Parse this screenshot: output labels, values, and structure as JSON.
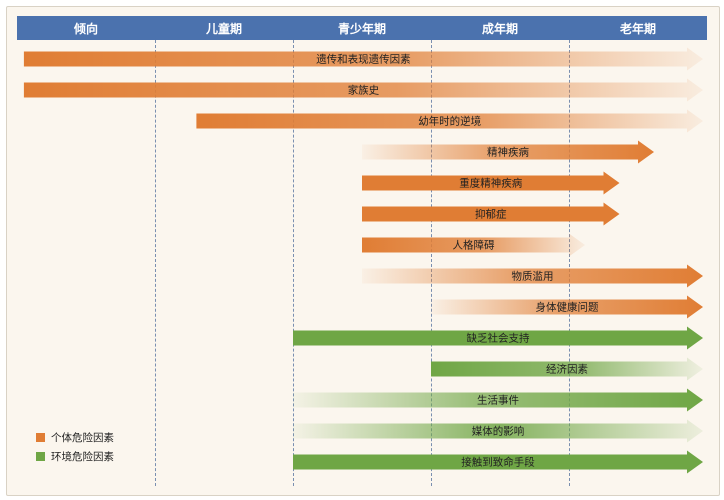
{
  "stages": [
    "倾向",
    "儿童期",
    "青少年期",
    "成年期",
    "老年期"
  ],
  "colors": {
    "orange": "#e07d34",
    "green": "#6fa645",
    "header": "#4b72ae"
  },
  "rows": [
    {
      "label": "遗传和表现遗传因素",
      "group": "individual",
      "from": 0.05,
      "to": 5.0,
      "fade": "end"
    },
    {
      "label": "家族史",
      "group": "individual",
      "from": 0.05,
      "to": 5.0,
      "fade": "end"
    },
    {
      "label": "幼年时的逆境",
      "group": "individual",
      "from": 1.3,
      "to": 5.0,
      "fade": "end"
    },
    {
      "label": "精神疾病",
      "group": "individual",
      "from": 2.5,
      "to": 4.5,
      "fade": "start"
    },
    {
      "label": "重度精神疾病",
      "group": "individual",
      "from": 2.5,
      "to": 4.25,
      "fade": "none"
    },
    {
      "label": "抑郁症",
      "group": "individual",
      "from": 2.5,
      "to": 4.25,
      "fade": "none"
    },
    {
      "label": "人格障碍",
      "group": "individual",
      "from": 2.5,
      "to": 4.0,
      "fade": "end"
    },
    {
      "label": "物质滥用",
      "group": "individual",
      "from": 2.5,
      "to": 5.0,
      "fade": "start"
    },
    {
      "label": "身体健康问题",
      "group": "individual",
      "from": 3.0,
      "to": 5.0,
      "fade": "start"
    },
    {
      "label": "缺乏社会支持",
      "group": "environment",
      "from": 2.0,
      "to": 5.0,
      "fade": "none"
    },
    {
      "label": "经济因素",
      "group": "environment",
      "from": 3.0,
      "to": 5.0,
      "fade": "end"
    },
    {
      "label": "生活事件",
      "group": "environment",
      "from": 2.0,
      "to": 5.0,
      "fade": "start"
    },
    {
      "label": "媒体的影响",
      "group": "environment",
      "from": 2.0,
      "to": 5.0,
      "fade": "both"
    },
    {
      "label": "接触到致命手段",
      "group": "environment",
      "from": 2.0,
      "to": 5.0,
      "fade": "none"
    }
  ],
  "legend": {
    "individual": "个体危险因素",
    "environment": "环境危险因素"
  }
}
